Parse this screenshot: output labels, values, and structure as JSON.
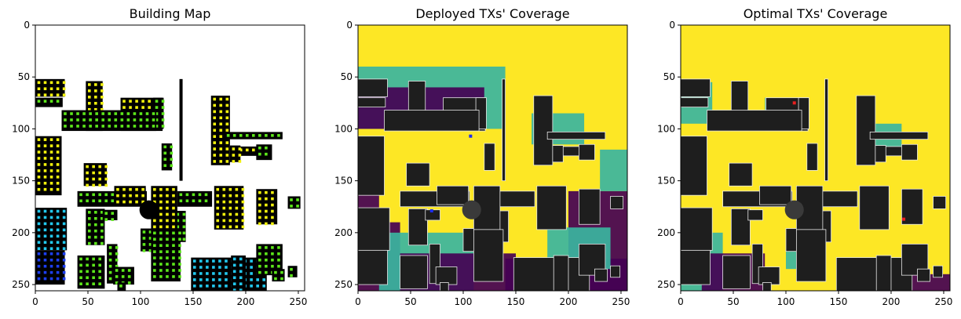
{
  "chart_data": [
    {
      "type": "heatmap",
      "title": "Building Map",
      "xlabel": "",
      "ylabel": "",
      "x_ticks": [
        0,
        50,
        100,
        150,
        200,
        250
      ],
      "y_ticks": [
        0,
        50,
        100,
        150,
        200,
        250
      ],
      "xlim": [
        0,
        256
      ],
      "ylim": [
        256,
        0
      ],
      "grid": false,
      "background_color": "#ffffff",
      "marker_colors": {
        "yellow": "#f2f20c",
        "green": "#5ce61a",
        "cyan": "#22c8ee",
        "blue": "#1c3ef0",
        "dark-blue": "#0d1fd0"
      }
    },
    {
      "type": "heatmap",
      "title": "Deployed TXs' Coverage",
      "xlabel": "",
      "ylabel": "",
      "x_ticks": [
        0,
        50,
        100,
        150,
        200,
        250
      ],
      "y_ticks": [
        0,
        50,
        100,
        150,
        200,
        250
      ],
      "xlim": [
        0,
        256
      ],
      "ylim": [
        256,
        0
      ],
      "grid": false,
      "colormap": "viridis",
      "transmitter_markers": [
        {
          "color": "#1e2ef0",
          "x": 107,
          "y": 107
        },
        {
          "color": "#1e2ef0",
          "x": 70,
          "y": 179
        }
      ]
    },
    {
      "type": "heatmap",
      "title": "Optimal TXs' Coverage",
      "xlabel": "",
      "ylabel": "",
      "x_ticks": [
        0,
        50,
        100,
        150,
        200,
        250
      ],
      "y_ticks": [
        0,
        50,
        100,
        150,
        200,
        250
      ],
      "xlim": [
        0,
        256
      ],
      "ylim": [
        256,
        0
      ],
      "grid": false,
      "colormap": "viridis",
      "transmitter_markers": [
        {
          "color": "#e82020",
          "x": 108,
          "y": 75
        },
        {
          "color": "#e82020",
          "x": 212,
          "y": 187
        }
      ]
    }
  ]
}
